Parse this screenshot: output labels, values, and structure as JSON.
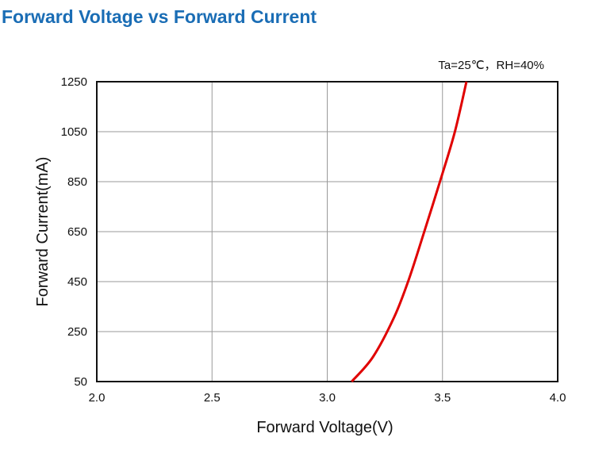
{
  "chart_data": {
    "type": "line",
    "title": "Forward Voltage vs Forward Current",
    "annotation": "Ta=25℃，RH=40%",
    "xlabel": "Forward Voltage(V)",
    "ylabel": "Forward Current(mA)",
    "xlim": [
      2.0,
      4.0
    ],
    "ylim": [
      50,
      1250
    ],
    "xticks": [
      "2.0",
      "2.5",
      "3.0",
      "3.5",
      "4.0"
    ],
    "yticks": [
      "50",
      "250",
      "450",
      "650",
      "850",
      "1050",
      "1250"
    ],
    "grid": true,
    "series": [
      {
        "name": "Forward Current",
        "color": "#e00000",
        "x": [
          3.106,
          3.198,
          3.29,
          3.353,
          3.42,
          3.49,
          3.553,
          3.604
        ],
        "y": [
          50,
          148,
          307,
          456,
          647,
          853,
          1047,
          1250
        ]
      }
    ]
  }
}
